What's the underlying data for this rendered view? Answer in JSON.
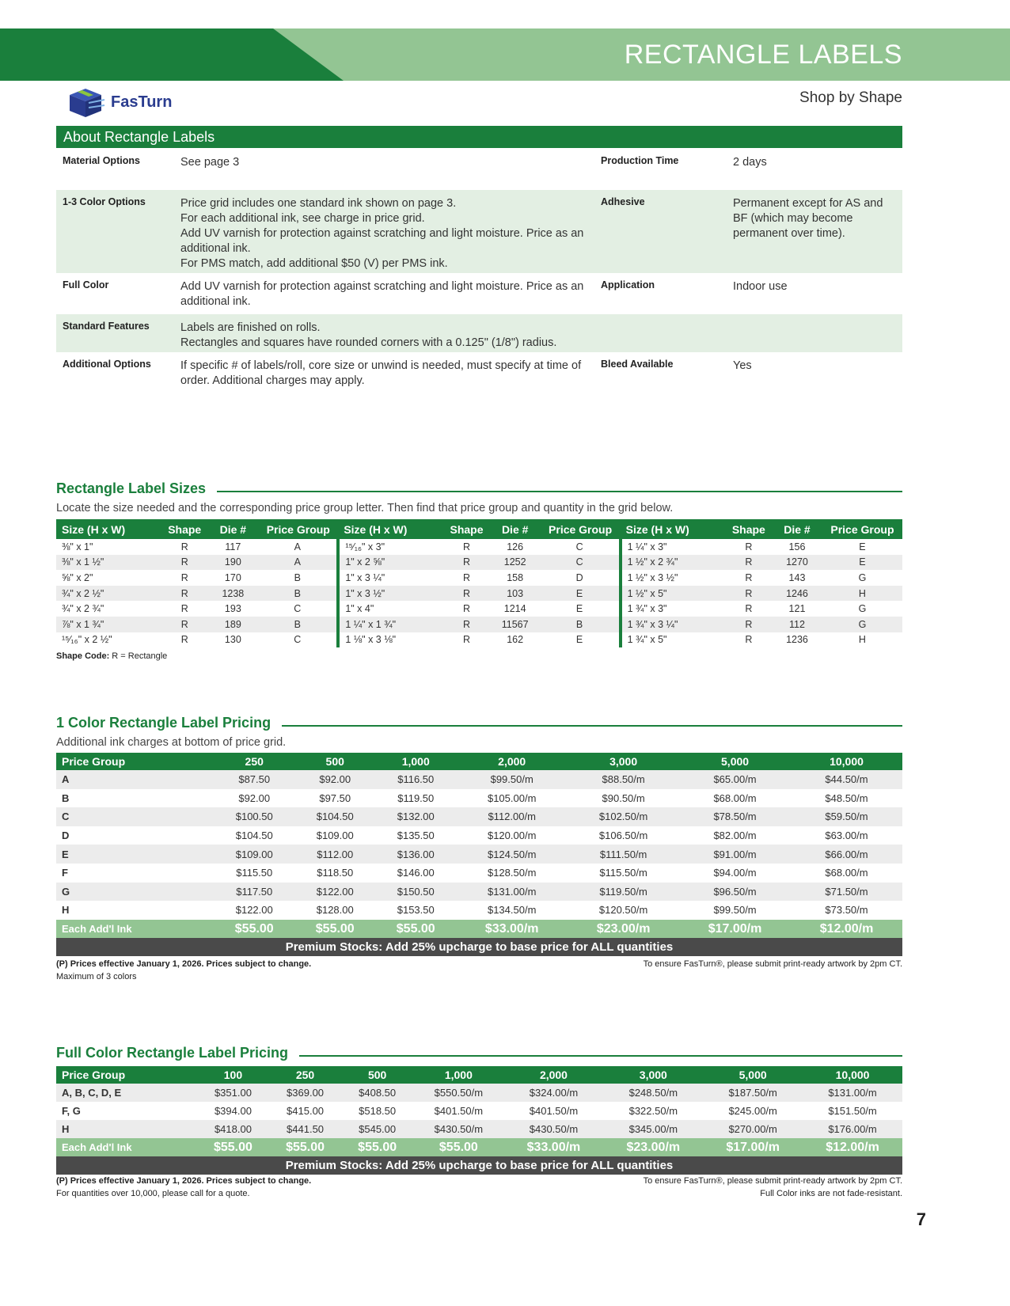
{
  "header": {
    "title": "RECTANGLE LABELS",
    "subtitle": "Shop by Shape",
    "logo_text": "FasTurn",
    "colors": {
      "dark_green": "#1a7f3c",
      "light_green": "#93c593",
      "navy": "#2a3c8f"
    }
  },
  "about": {
    "title": "About Rectangle Labels",
    "rows": [
      {
        "label": "Material Options",
        "text": [
          "See page 3"
        ],
        "label2": "Production Time",
        "text2": "2 days"
      },
      {
        "label": "1-3 Color Options",
        "text": [
          "Price grid includes one standard ink shown on page 3.",
          "For each additional ink, see charge in price grid.",
          "Add UV varnish for protection against scratching and light moisture. Price as an additional ink.",
          "For PMS match, add additional $50 (V) per PMS ink."
        ],
        "label2": "Adhesive",
        "text2": "Permanent except for AS and BF (which may become permanent over time)."
      },
      {
        "label": "Full Color",
        "text": [
          "Add UV varnish for protection against scratching and light moisture. Price as an additional ink."
        ],
        "label2": "Application",
        "text2": "Indoor use"
      },
      {
        "label": "Standard Features",
        "text": [
          "Labels are finished on rolls.",
          "Rectangles and squares have rounded corners  with a 0.125\" (1/8\") radius."
        ],
        "label2": "",
        "text2": ""
      },
      {
        "label": "Additional Options",
        "text": [
          "If specific # of labels/roll, core size or unwind is needed, must specify at time of order. Additional charges may apply."
        ],
        "label2": "Bleed Available",
        "text2": "Yes"
      }
    ]
  },
  "sizes": {
    "title": "Rectangle Label Sizes",
    "intro": "Locate the size needed and the corresponding price group letter. Then find that price group and quantity in the  grid below.",
    "headers": [
      "Size (H x W)",
      "Shape",
      "Die #",
      "Price Group",
      "Size (H x W)",
      "Shape",
      "Die #",
      "Price Group",
      "Size (H x W)",
      "Shape",
      "Die #",
      "Price Group"
    ],
    "rows": [
      [
        "⅜\" x 1\"",
        "R",
        "117",
        "A",
        "¹⁵⁄₁₆\" x 3\"",
        "R",
        "126",
        "C",
        "1 ¼\" x 3\"",
        "R",
        "156",
        "E"
      ],
      [
        "⅜\" x 1 ½\"",
        "R",
        "190",
        "A",
        "1\" x 2 ⅝\"",
        "R",
        "1252",
        "C",
        "1 ½\" x 2 ¾\"",
        "R",
        "1270",
        "E"
      ],
      [
        "⅝\" x 2\"",
        "R",
        "170",
        "B",
        "1\" x 3 ¼\"",
        "R",
        "158",
        "D",
        "1 ½\" x 3 ½\"",
        "R",
        "143",
        "G"
      ],
      [
        "¾\" x 2 ½\"",
        "R",
        "1238",
        "B",
        "1\" x 3 ½\"",
        "R",
        "103",
        "E",
        "1 ½\" x 5\"",
        "R",
        "1246",
        "H"
      ],
      [
        "¾\" x 2 ¾\"",
        "R",
        "193",
        "C",
        "1\" x 4\"",
        "R",
        "1214",
        "E",
        "1 ¾\" x 3\"",
        "R",
        "121",
        "G"
      ],
      [
        "⅞\" x 1 ¾\"",
        "R",
        "189",
        "B",
        "1 ¼\" x 1 ¾\"",
        "R",
        "11567",
        "B",
        "1 ¾\" x 3 ¼\"",
        "R",
        "112",
        "G"
      ],
      [
        "¹⁵⁄₁₆\" x 2 ½\"",
        "R",
        "130",
        "C",
        "1 ⅛\" x 3 ⅛\"",
        "R",
        "162",
        "E",
        "1 ¾\" x 5\"",
        "R",
        "1236",
        "H"
      ]
    ],
    "shape_code_label": "Shape Code:",
    "shape_code": " R = Rectangle"
  },
  "one_color": {
    "title": "1 Color Rectangle Label Pricing",
    "intro": "Additional ink charges at bottom of price grid.",
    "headers": [
      "Price Group",
      "250",
      "500",
      "1,000",
      "2,000",
      "3,000",
      "5,000",
      "10,000"
    ],
    "rows": [
      [
        "A",
        "$87.50",
        "$92.00",
        "$116.50",
        "$99.50/m",
        "$88.50/m",
        "$65.00/m",
        "$44.50/m"
      ],
      [
        "B",
        "$92.00",
        "$97.50",
        "$119.50",
        "$105.00/m",
        "$90.50/m",
        "$68.00/m",
        "$48.50/m"
      ],
      [
        "C",
        "$100.50",
        "$104.50",
        "$132.00",
        "$112.00/m",
        "$102.50/m",
        "$78.50/m",
        "$59.50/m"
      ],
      [
        "D",
        "$104.50",
        "$109.00",
        "$135.50",
        "$120.00/m",
        "$106.50/m",
        "$82.00/m",
        "$63.00/m"
      ],
      [
        "E",
        "$109.00",
        "$112.00",
        "$136.00",
        "$124.50/m",
        "$111.50/m",
        "$91.00/m",
        "$66.00/m"
      ],
      [
        "F",
        "$115.50",
        "$118.50",
        "$146.00",
        "$128.50/m",
        "$115.50/m",
        "$94.00/m",
        "$68.00/m"
      ],
      [
        "G",
        "$117.50",
        "$122.00",
        "$150.50",
        "$131.00/m",
        "$119.50/m",
        "$96.50/m",
        "$71.50/m"
      ],
      [
        "H",
        "$122.00",
        "$128.00",
        "$153.50",
        "$134.50/m",
        "$120.50/m",
        "$99.50/m",
        "$73.50/m"
      ]
    ],
    "ink_row": [
      "Each Add'l Ink",
      "$55.00",
      "$55.00",
      "$55.00",
      "$33.00/m",
      "$23.00/m",
      "$17.00/m",
      "$12.00/m"
    ],
    "premium": "Premium Stocks: Add 25% upcharge to base price for ALL quantities",
    "note_left": "(P) Prices effective January 1, 2026. Prices subject to change.",
    "note_left2": "Maximum of 3 colors",
    "note_right": "To ensure FasTurn®, please submit print-ready artwork by 2pm CT."
  },
  "full_color": {
    "title": "Full Color Rectangle Label Pricing",
    "headers": [
      "Price Group",
      "100",
      "250",
      "500",
      "1,000",
      "2,000",
      "3,000",
      "5,000",
      "10,000"
    ],
    "rows": [
      [
        "A, B, C, D, E",
        "$351.00",
        "$369.00",
        "$408.50",
        "$550.50/m",
        "$324.00/m",
        "$248.50/m",
        "$187.50/m",
        "$131.00/m"
      ],
      [
        "F, G",
        "$394.00",
        "$415.00",
        "$518.50",
        "$401.50/m",
        "$401.50/m",
        "$322.50/m",
        "$245.00/m",
        "$151.50/m"
      ],
      [
        "H",
        "$418.00",
        "$441.50",
        "$545.00",
        "$430.50/m",
        "$430.50/m",
        "$345.00/m",
        "$270.00/m",
        "$176.00/m"
      ]
    ],
    "ink_row": [
      "Each Add'l Ink",
      "$55.00",
      "$55.00",
      "$55.00",
      "$55.00",
      "$33.00/m",
      "$23.00/m",
      "$17.00/m",
      "$12.00/m"
    ],
    "premium": "Premium Stocks: Add 25% upcharge to base price for ALL quantities",
    "note_left": "(P) Prices effective January 1, 2026. Prices subject to change.",
    "note_left2": "For quantities over 10,000, please call for a quote.",
    "note_right": "To ensure FasTurn®, please submit print-ready artwork by 2pm CT.",
    "note_right2": "Full Color inks are not fade-resistant."
  },
  "page_number": "7"
}
